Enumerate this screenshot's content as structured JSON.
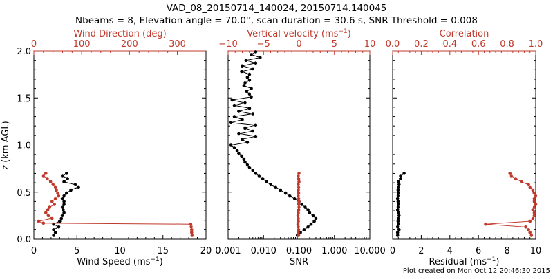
{
  "title": "VAD_08_20150714_140024, 20150714.140045",
  "subtitle": "Nbeams = 8, Elevation angle = 70.0°, scan duration = 30.6 s, SNR Threshold = 0.008",
  "footer": "Plot created on Mon Oct 12 20:46:30 2015",
  "colors": {
    "axis": "#000000",
    "red": "#c0392b"
  },
  "ylabel": "z (km AGL)",
  "chart_data": [
    {
      "type": "line",
      "name": "wind",
      "ylabel": "z (km AGL)",
      "ylim": [
        0,
        2
      ],
      "yticks": [
        0,
        0.5,
        1,
        1.5,
        2
      ],
      "ytick_labels": [
        "0.0",
        "0.5",
        "1.0",
        "1.5",
        "2.0"
      ],
      "bottom_axis": {
        "label_prefix": "Wind Speed (ms",
        "label_sup": "−1",
        "label_suffix": ")",
        "range": [
          0,
          20
        ],
        "ticks": [
          0,
          5,
          10,
          15,
          20
        ],
        "tick_labels": [
          "0",
          "5",
          "10",
          "15",
          "20"
        ]
      },
      "top_axis": {
        "label": "Wind Direction (deg)",
        "range": [
          0,
          360
        ],
        "ticks": [
          0,
          100,
          200,
          300
        ],
        "tick_labels": [
          "0",
          "100",
          "200",
          "300"
        ]
      },
      "series": [
        {
          "axis": "bottom",
          "color": "#000000",
          "z": [
            0.04,
            0.07,
            0.1,
            0.13,
            0.16,
            0.19,
            0.22,
            0.25,
            0.28,
            0.31,
            0.34,
            0.37,
            0.4,
            0.43,
            0.46,
            0.49,
            0.52,
            0.55,
            0.58,
            0.61,
            0.64,
            0.67,
            0.7
          ],
          "values": [
            2.3,
            2.5,
            2.3,
            2.9,
            2.3,
            3.0,
            3.2,
            3.3,
            3.5,
            3.4,
            3.3,
            3.5,
            3.5,
            3.3,
            3.5,
            3.8,
            4.3,
            5.2,
            4.8,
            3.5,
            3.9,
            3.3,
            3.8
          ]
        },
        {
          "axis": "top",
          "color": "#c0392b",
          "z": [
            0.04,
            0.07,
            0.1,
            0.13,
            0.16,
            0.17,
            0.19,
            0.22,
            0.25,
            0.28,
            0.31,
            0.34,
            0.37,
            0.4,
            0.43,
            0.46,
            0.49,
            0.52,
            0.55,
            0.58,
            0.61,
            0.64,
            0.67,
            0.7
          ],
          "values": [
            331,
            330,
            330,
            329,
            328,
            20,
            10,
            38,
            30,
            25,
            29,
            33,
            43,
            38,
            45,
            52,
            50,
            47,
            45,
            40,
            35,
            28,
            20,
            25
          ]
        }
      ]
    },
    {
      "type": "line",
      "name": "snr",
      "ylim": [
        0,
        2
      ],
      "bottom_axis": {
        "label": "SNR",
        "scale": "log",
        "range": [
          0.001,
          10
        ],
        "ticks": [
          0.001,
          0.01,
          0.1,
          1,
          10
        ],
        "tick_labels": [
          "0.001",
          "0.010",
          "0.100",
          "1.000",
          "10.000"
        ]
      },
      "top_axis": {
        "label_prefix": "Vertical velocity (ms",
        "label_sup": "−1",
        "label_suffix": ")",
        "range": [
          -10,
          10
        ],
        "ticks": [
          -10,
          -5,
          0,
          5,
          10
        ],
        "tick_labels": [
          "−10",
          "−5",
          "0",
          "5",
          "10"
        ]
      },
      "reference_line": {
        "axis": "top",
        "value": 0,
        "style": "dotted"
      },
      "series": [
        {
          "axis": "bottom",
          "color": "#000000",
          "z": [
            0.04,
            0.07,
            0.1,
            0.13,
            0.16,
            0.19,
            0.22,
            0.25,
            0.28,
            0.31,
            0.34,
            0.37,
            0.4,
            0.43,
            0.46,
            0.49,
            0.52,
            0.55,
            0.58,
            0.61,
            0.64,
            0.67,
            0.7,
            0.73,
            0.76,
            0.79,
            0.82,
            0.85,
            0.88,
            0.91,
            0.94,
            0.97,
            1.0,
            1.03,
            1.06,
            1.09,
            1.12,
            1.15,
            1.18,
            1.21,
            1.24,
            1.27,
            1.3,
            1.33,
            1.36,
            1.39,
            1.42,
            1.45,
            1.48,
            1.51,
            1.54,
            1.57,
            1.6,
            1.63,
            1.66,
            1.69,
            1.72,
            1.75,
            1.78,
            1.81,
            1.84,
            1.87,
            1.9,
            1.93,
            1.96,
            1.99
          ],
          "values": [
            0.09,
            0.11,
            0.14,
            0.18,
            0.22,
            0.27,
            0.3,
            0.25,
            0.2,
            0.18,
            0.15,
            0.12,
            0.1,
            0.075,
            0.055,
            0.042,
            0.03,
            0.022,
            0.016,
            0.012,
            0.0095,
            0.0075,
            0.006,
            0.005,
            0.004,
            0.0035,
            0.003,
            0.0028,
            0.0024,
            0.002,
            0.0018,
            0.0015,
            0.0012,
            0.0035,
            0.0025,
            0.006,
            0.002,
            0.005,
            0.003,
            0.006,
            0.0012,
            0.0025,
            0.0015,
            0.005,
            0.002,
            0.004,
            0.0015,
            0.003,
            0.0013,
            0.0045,
            0.004,
            0.0033,
            0.0045,
            0.0028,
            0.003,
            0.004,
            0.0035,
            0.004,
            0.0024,
            0.005,
            0.0025,
            0.006,
            0.0032,
            0.008,
            0.0045,
            0.006
          ]
        },
        {
          "axis": "top",
          "color": "#c0392b",
          "z": [
            0.04,
            0.07,
            0.1,
            0.13,
            0.16,
            0.19,
            0.22,
            0.25,
            0.28,
            0.31,
            0.34,
            0.37,
            0.4,
            0.43,
            0.46,
            0.49,
            0.52,
            0.55,
            0.58,
            0.61,
            0.64,
            0.67,
            0.7
          ],
          "values": [
            -0.05,
            -0.1,
            -0.05,
            -0.1,
            -0.15,
            -0.1,
            -0.1,
            -0.15,
            -0.1,
            -0.05,
            0.0,
            -0.05,
            0.0,
            -0.05,
            -0.1,
            -0.05,
            -0.1,
            -0.05,
            -0.1,
            0.0,
            -0.05,
            -0.1,
            0.0
          ]
        }
      ]
    },
    {
      "type": "line",
      "name": "residual",
      "ylim": [
        0,
        2
      ],
      "bottom_axis": {
        "label_prefix": "Residual (ms",
        "label_sup": "−1",
        "label_suffix": ")",
        "range": [
          0,
          10
        ],
        "ticks": [
          0,
          2,
          4,
          6,
          8,
          10
        ],
        "tick_labels": [
          "0",
          "2",
          "4",
          "6",
          "8",
          "10"
        ]
      },
      "top_axis": {
        "label": "Correlation",
        "range": [
          0,
          1
        ],
        "ticks": [
          0,
          0.2,
          0.4,
          0.6,
          0.8,
          1.0
        ],
        "tick_labels": [
          "0.0",
          "0.2",
          "0.4",
          "0.6",
          "0.8",
          "1.0"
        ]
      },
      "series": [
        {
          "axis": "bottom",
          "color": "#000000",
          "z": [
            0.04,
            0.07,
            0.1,
            0.13,
            0.16,
            0.19,
            0.22,
            0.25,
            0.28,
            0.31,
            0.34,
            0.37,
            0.4,
            0.43,
            0.46,
            0.49,
            0.52,
            0.55,
            0.58,
            0.61,
            0.64,
            0.67,
            0.7
          ],
          "values": [
            0.35,
            0.35,
            0.45,
            0.35,
            0.4,
            0.38,
            0.4,
            0.45,
            0.4,
            0.35,
            0.38,
            0.4,
            0.38,
            0.35,
            0.38,
            0.4,
            0.38,
            0.4,
            0.45,
            0.4,
            0.55,
            0.55,
            0.8
          ]
        },
        {
          "axis": "top",
          "color": "#c0392b",
          "z": [
            0.04,
            0.07,
            0.1,
            0.13,
            0.16,
            0.19,
            0.22,
            0.25,
            0.28,
            0.31,
            0.34,
            0.37,
            0.4,
            0.43,
            0.46,
            0.49,
            0.52,
            0.55,
            0.58,
            0.61,
            0.64,
            0.67,
            0.7
          ],
          "values": [
            0.97,
            0.96,
            0.95,
            0.93,
            0.65,
            0.96,
            0.98,
            0.99,
            0.99,
            0.98,
            0.99,
            1.0,
            0.99,
            0.99,
            1.0,
            0.99,
            0.98,
            0.96,
            0.95,
            0.9,
            0.86,
            0.83,
            0.82
          ]
        }
      ]
    }
  ]
}
